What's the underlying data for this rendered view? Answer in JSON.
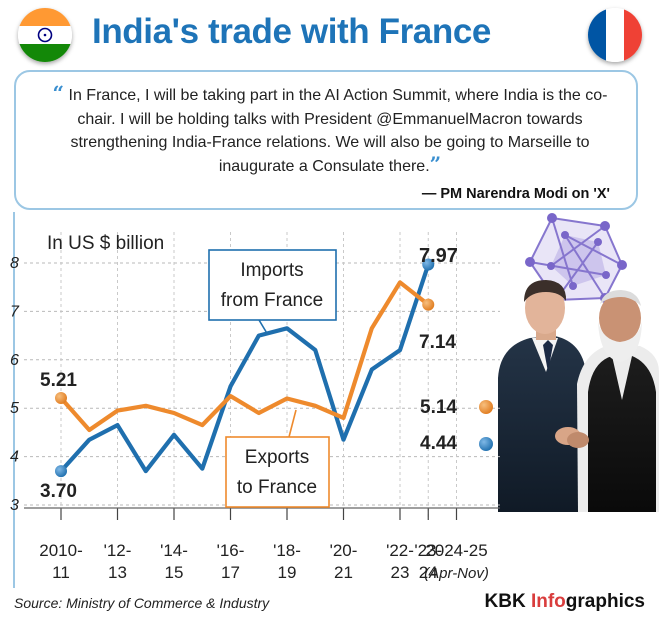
{
  "title": "India's trade with France",
  "quote": {
    "text": "In France, I will be taking part in the AI Action Summit, where India is the co-chair. I will be holding talks with President @EmmanuelMacron towards strengthening India-France relations. We will also be going to Marseille to inaugurate a Consulate there.",
    "attribution": "— PM Narendra Modi on 'X'"
  },
  "footer": {
    "source": "Source: Ministry of Commerce & Industry",
    "credit_prefix": "KBK ",
    "credit_accent": "Info",
    "credit_suffix": "graphics"
  },
  "colors": {
    "title": "#1e74b8",
    "imports": "#1f6fae",
    "exports": "#ee8a2d",
    "flag_saffron": "#ff9933",
    "flag_green": "#138808",
    "flag_chakra": "#000080",
    "france_blue": "#0055a4",
    "france_red": "#ef4135"
  },
  "icons": [
    "india-flag-icon",
    "france-flag-icon",
    "ai-network-icon",
    "leaders-photo"
  ],
  "chart_data": {
    "type": "line",
    "unit_label": "In US $ billion",
    "ylim": [
      3,
      8
    ],
    "y_ticks": [
      "3",
      "4",
      "5",
      "6",
      "7",
      "8"
    ],
    "x": [
      2010.5,
      2011.5,
      2012.5,
      2013.5,
      2014.5,
      2015.5,
      2016.5,
      2017.5,
      2018.5,
      2019.5,
      2020.5,
      2021.5,
      2022.5,
      2023.5
    ],
    "x_ticks": [
      {
        "label": "2010-\n11",
        "x": 2010.5
      },
      {
        "label": "'12-\n13",
        "x": 2012.5
      },
      {
        "label": "'14-\n15",
        "x": 2014.5
      },
      {
        "label": "'16-\n17",
        "x": 2016.5
      },
      {
        "label": "'18-\n19",
        "x": 2018.5
      },
      {
        "label": "'20-\n21",
        "x": 2020.5
      },
      {
        "label": "'22-\n23",
        "x": 2022.5
      },
      {
        "label": "'23-\n24",
        "x": 2023.5
      },
      {
        "label": "2024-25\n(Apr-Nov)",
        "x": 2024.5
      }
    ],
    "series": [
      {
        "name": "Imports from France",
        "values": [
          3.7,
          4.35,
          4.65,
          3.7,
          4.45,
          3.75,
          5.45,
          6.5,
          6.65,
          6.2,
          4.35,
          5.8,
          6.2,
          7.97
        ],
        "latest": 4.44
      },
      {
        "name": "Exports to France",
        "values": [
          5.21,
          4.55,
          4.95,
          5.05,
          4.9,
          4.65,
          5.25,
          4.9,
          5.2,
          5.05,
          4.8,
          6.65,
          7.6,
          7.14
        ],
        "latest": 5.14
      }
    ],
    "data_labels": {
      "imports_first": "3.70",
      "imports_last": "7.97",
      "exports_first": "5.21",
      "exports_last": "7.14",
      "exports_latest": "5.14",
      "imports_latest": "4.44"
    }
  }
}
